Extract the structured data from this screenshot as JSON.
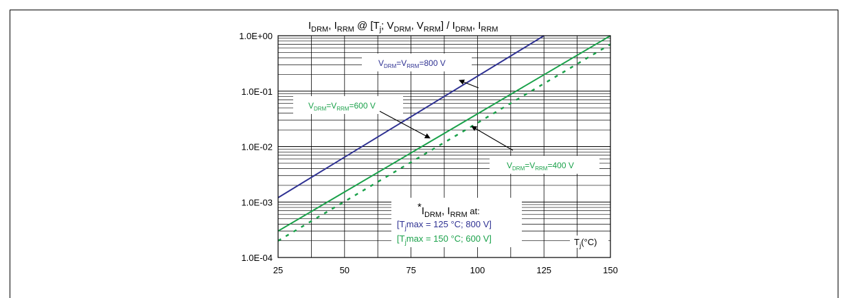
{
  "chart_data": {
    "type": "line",
    "title_main_1": "I",
    "title_sub_1": "DRM",
    "title_sep_1": ", I",
    "title_sub_2": "RRM",
    "title_mid": " @ [T",
    "title_sub_3": "j",
    "title_mid_2": "; V",
    "title_sub_4": "DRM",
    "title_sep_2": ", V",
    "title_sub_5": "RRM",
    "title_mid_3": "] / I",
    "title_sub_6": "DRM",
    "title_sep_3": ", I",
    "title_sub_7": "RRM",
    "x_axis_label": "T",
    "x_axis_label_sub": "j",
    "x_axis_label_suffix": "(°C)",
    "x_range": [
      25,
      150
    ],
    "y_range": [
      0.0001,
      1
    ],
    "y_scale": "log",
    "x_ticks": [
      "25",
      "50",
      "75",
      "100",
      "125",
      "150"
    ],
    "y_ticks": [
      "1.0E+00",
      "1.0E-01",
      "1.0E-02",
      "1.0E-03",
      "1.0E-04"
    ],
    "grid": true,
    "series": [
      {
        "label_parts": [
          "V",
          "DRM",
          "=V",
          "RRM",
          "=800 V"
        ],
        "color": "#2e3192",
        "style": "solid",
        "points": [
          [
            25,
            0.0012
          ],
          [
            125,
            1.0
          ]
        ]
      },
      {
        "label_parts": [
          "V",
          "DRM",
          "=V",
          "RRM",
          "=600 V"
        ],
        "color": "#1aa14a",
        "style": "solid",
        "points": [
          [
            25,
            0.0003
          ],
          [
            150,
            1.0
          ]
        ]
      },
      {
        "label_parts": [
          "V",
          "DRM",
          "=V",
          "RRM",
          "=400 V"
        ],
        "color": "#1aa14a",
        "style": "dotted",
        "points": [
          [
            25,
            0.0002
          ],
          [
            150,
            0.7
          ]
        ]
      }
    ],
    "note": {
      "asterisk": "*",
      "line1_a": "I",
      "line1_sub_a": "DRM",
      "line1_b": ", I",
      "line1_sub_b": "RRM",
      "line1_c": " at:",
      "line2_a": "[T",
      "line2_sub": "j",
      "line2_b": "max = 125 °C; 800 V]",
      "line2_color": "#2e3192",
      "line3_a": "[T",
      "line3_sub": "j",
      "line3_b": "max = 150 °C; 600 V]",
      "line3_color": "#1aa14a"
    }
  }
}
